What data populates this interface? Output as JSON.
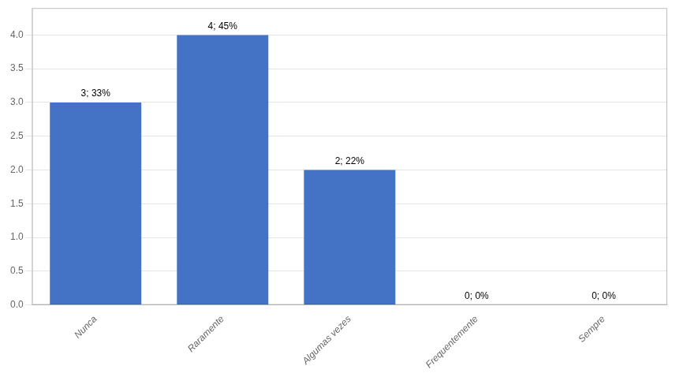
{
  "chart_data": {
    "type": "bar",
    "categories": [
      "Nunca",
      "Raramente",
      "Algumas vezes",
      "Frequentemente",
      "Sempre"
    ],
    "values": [
      3,
      4,
      2,
      0,
      0
    ],
    "value_labels": [
      "3; 33%",
      "4; 45%",
      "2; 22%",
      "0; 0%",
      "0; 0%"
    ],
    "data_labels": true,
    "color": "#4472C4",
    "ylim": [
      0,
      4.4
    ],
    "yticks": [
      {
        "value": 0,
        "label": "0.0"
      },
      0.5,
      {
        "value": 1,
        "label": "1.0"
      },
      1.5,
      {
        "value": 2,
        "label": "2.0"
      },
      2.5,
      {
        "value": 3,
        "label": "3.0"
      },
      3.5,
      {
        "value": 4,
        "label": "4.0"
      }
    ],
    "grid": true
  }
}
